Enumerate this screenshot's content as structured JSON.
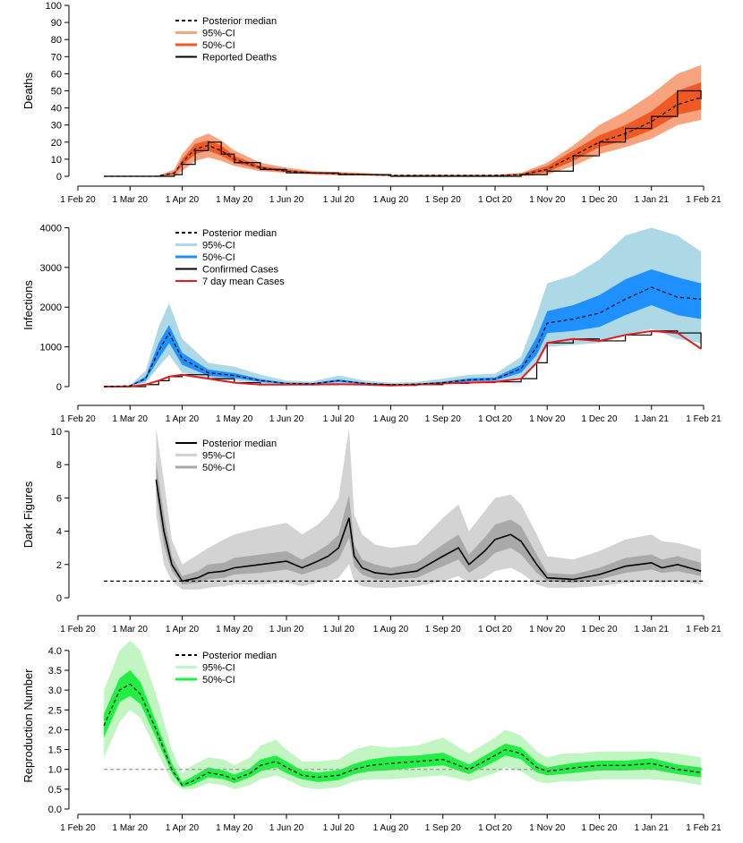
{
  "x_axis": {
    "tick_labels": [
      "1 Feb 20",
      "1 Mar 20",
      "1 Apr 20",
      "1 May 20",
      "1 Jun 20",
      "1 Jul 20",
      "1 Aug 20",
      "1 Sep 20",
      "1 Oct 20",
      "1 Nov 20",
      "1 Dec 20",
      "1 Jan 21",
      "1 Feb 21"
    ],
    "tick_months": [
      0,
      1,
      2,
      3,
      4,
      5,
      6,
      7,
      8,
      9,
      10,
      11,
      12
    ]
  },
  "chart_data": [
    {
      "type": "area",
      "ylabel": "Deaths",
      "ylim": [
        0,
        100
      ],
      "yticks": [
        0,
        10,
        20,
        30,
        40,
        50,
        60,
        70,
        80,
        90,
        100
      ],
      "legend_position": "top-left",
      "legend": [
        "Posterior median",
        "95%-CI",
        "50%-CI",
        "Reported Deaths"
      ],
      "colors": {
        "ci95": "#f7a47e",
        "ci50": "#ef5a24",
        "median": "#000000",
        "observed": "#000000"
      },
      "observed_style": "step",
      "series": {
        "x_month": [
          0.5,
          1.0,
          1.5,
          1.85,
          2.0,
          2.25,
          2.5,
          2.75,
          3.0,
          3.5,
          4.0,
          4.5,
          5.0,
          5.5,
          6.0,
          7.0,
          8.0,
          8.5,
          9.0,
          9.5,
          10.0,
          10.5,
          11.0,
          11.5,
          11.95
        ],
        "median": [
          0,
          0,
          0,
          2,
          8,
          16,
          18,
          15,
          10,
          5,
          3,
          2,
          1.5,
          1,
          0.5,
          0.5,
          0.5,
          1,
          4,
          12,
          20,
          25,
          32,
          42,
          46
        ],
        "ci95_low": [
          0,
          0,
          0,
          0,
          3,
          9,
          11,
          9,
          6,
          3,
          2,
          1,
          0.5,
          0.5,
          0,
          0,
          0,
          0,
          1,
          6,
          13,
          17,
          22,
          30,
          33
        ],
        "ci95_high": [
          0,
          0,
          0,
          4,
          13,
          22,
          25,
          21,
          15,
          8,
          5,
          3,
          2.5,
          2,
          1,
          1,
          1,
          2,
          8,
          18,
          30,
          38,
          48,
          60,
          65
        ],
        "ci50_low": [
          0,
          0,
          0,
          1,
          6,
          13,
          15,
          12,
          8,
          4,
          2.5,
          1.5,
          1,
          0.5,
          0.3,
          0.3,
          0.3,
          0.5,
          2.5,
          9,
          17,
          21,
          27,
          36,
          39
        ],
        "ci50_high": [
          0,
          0,
          0,
          2.5,
          10,
          19,
          21,
          18,
          12,
          6,
          4,
          2.5,
          2,
          1.5,
          0.7,
          0.7,
          0.7,
          1.5,
          6,
          15,
          24,
          30,
          38,
          50,
          55
        ],
        "observed": [
          0,
          0,
          0,
          1,
          7,
          15,
          20,
          13,
          8,
          4,
          2,
          2,
          1,
          1,
          0,
          0,
          0,
          1,
          3,
          12,
          20,
          28,
          35,
          50,
          45
        ]
      }
    },
    {
      "type": "area",
      "ylabel": "Infections",
      "ylim": [
        0,
        4100
      ],
      "yticks": [
        0,
        1000,
        2000,
        3000,
        4000
      ],
      "legend_position": "top-left",
      "legend": [
        "Posterior median",
        "95%-CI",
        "50%-CI",
        "Confirmed Cases",
        "7 day mean Cases"
      ],
      "colors": {
        "ci95": "#add8e6",
        "ci50": "#1e90ff",
        "median": "#000000",
        "observed": "#000000",
        "mean7": "#e41a1c"
      },
      "observed_style": "step",
      "series": {
        "x_month": [
          0.5,
          1.0,
          1.3,
          1.55,
          1.75,
          2.0,
          2.5,
          3.0,
          3.5,
          4.0,
          4.5,
          5.0,
          5.5,
          6.0,
          6.5,
          7.0,
          7.5,
          8.0,
          8.5,
          8.8,
          9.0,
          9.5,
          10.0,
          10.5,
          11.0,
          11.5,
          11.95
        ],
        "median": [
          0,
          20,
          200,
          900,
          1350,
          700,
          350,
          280,
          150,
          80,
          70,
          150,
          80,
          50,
          60,
          100,
          170,
          190,
          450,
          1000,
          1600,
          1700,
          1850,
          2200,
          2500,
          2250,
          2200
        ],
        "ci95_low": [
          0,
          10,
          100,
          500,
          800,
          350,
          180,
          150,
          80,
          40,
          35,
          80,
          40,
          25,
          30,
          50,
          90,
          100,
          250,
          600,
          1000,
          1050,
          1100,
          1300,
          1450,
          1200,
          1100
        ],
        "ci95_high": [
          0,
          40,
          400,
          1500,
          2100,
          1200,
          600,
          500,
          300,
          150,
          130,
          280,
          150,
          100,
          120,
          200,
          300,
          320,
          750,
          1800,
          2600,
          2800,
          3200,
          3800,
          4000,
          3800,
          3400
        ],
        "ci50_low": [
          0,
          15,
          150,
          700,
          1100,
          550,
          270,
          220,
          120,
          60,
          55,
          120,
          60,
          40,
          45,
          80,
          130,
          150,
          350,
          800,
          1350,
          1400,
          1500,
          1800,
          2050,
          1800,
          1700
        ],
        "ci50_high": [
          0,
          25,
          250,
          1100,
          1550,
          850,
          430,
          340,
          190,
          100,
          90,
          180,
          100,
          60,
          75,
          125,
          210,
          230,
          550,
          1250,
          1900,
          2050,
          2300,
          2700,
          2950,
          2750,
          2600
        ],
        "observed": [
          0,
          0,
          50,
          150,
          250,
          300,
          200,
          100,
          50,
          50,
          50,
          60,
          50,
          30,
          50,
          80,
          100,
          120,
          200,
          600,
          1100,
          1200,
          1150,
          1300,
          1400,
          1350,
          950
        ],
        "mean7": [
          0,
          0,
          50,
          150,
          250,
          300,
          200,
          100,
          50,
          50,
          50,
          60,
          50,
          30,
          50,
          80,
          100,
          120,
          200,
          600,
          1100,
          1200,
          1150,
          1300,
          1400,
          1350,
          950
        ]
      }
    },
    {
      "type": "area",
      "ylabel": "Dark Figures",
      "ylim": [
        0,
        10
      ],
      "yticks": [
        0,
        2,
        4,
        6,
        8,
        10
      ],
      "reference_line": 1,
      "legend_position": "top-left",
      "legend": [
        "Posterior median",
        "95%-CI",
        "50%-CI"
      ],
      "colors": {
        "ci95": "#d3d3d3",
        "ci50": "#a9a9a9",
        "median": "#000000"
      },
      "series": {
        "x_month": [
          1.5,
          1.65,
          1.8,
          2.0,
          2.3,
          2.5,
          2.8,
          3.0,
          3.5,
          4.0,
          4.3,
          4.6,
          4.8,
          5.0,
          5.2,
          5.3,
          5.45,
          5.7,
          6.0,
          6.5,
          7.0,
          7.3,
          7.5,
          7.8,
          8.0,
          8.3,
          8.5,
          8.8,
          9.0,
          9.5,
          10.0,
          10.5,
          11.0,
          11.2,
          11.5,
          11.95
        ],
        "median": [
          7.1,
          4.0,
          2.0,
          1.0,
          1.2,
          1.5,
          1.6,
          1.8,
          2.0,
          2.2,
          1.8,
          2.2,
          2.5,
          3.0,
          4.8,
          2.5,
          1.8,
          1.5,
          1.4,
          1.6,
          2.5,
          3.0,
          2.0,
          2.8,
          3.5,
          3.8,
          3.4,
          2.0,
          1.2,
          1.1,
          1.4,
          1.9,
          2.1,
          1.8,
          2.0,
          1.6
        ],
        "ci95_low": [
          5.0,
          2.0,
          1.0,
          0.5,
          0.5,
          0.6,
          0.7,
          0.8,
          0.8,
          0.9,
          0.7,
          0.9,
          1.0,
          1.2,
          2.0,
          1.0,
          0.7,
          0.6,
          0.6,
          0.7,
          1.0,
          1.3,
          0.9,
          1.2,
          1.6,
          1.8,
          1.5,
          0.8,
          0.6,
          0.6,
          0.7,
          0.9,
          1.0,
          0.9,
          1.0,
          0.8
        ],
        "ci95_high": [
          10.2,
          7.0,
          3.5,
          2.0,
          2.6,
          3.0,
          3.5,
          3.8,
          4.2,
          4.5,
          3.8,
          4.4,
          5.0,
          6.0,
          10.2,
          5.0,
          3.8,
          3.2,
          3.0,
          3.2,
          4.8,
          5.6,
          4.0,
          5.2,
          6.0,
          6.2,
          5.6,
          3.8,
          2.5,
          2.3,
          2.8,
          3.5,
          3.8,
          3.4,
          3.3,
          2.9
        ],
        "ci50_low": [
          6.2,
          3.1,
          1.6,
          0.8,
          0.9,
          1.1,
          1.2,
          1.4,
          1.5,
          1.7,
          1.4,
          1.7,
          1.9,
          2.3,
          3.6,
          1.9,
          1.4,
          1.1,
          1.1,
          1.2,
          1.9,
          2.3,
          1.5,
          2.1,
          2.7,
          3.0,
          2.6,
          1.5,
          1.0,
          0.9,
          1.1,
          1.5,
          1.7,
          1.5,
          1.6,
          1.3
        ],
        "ci50_high": [
          8.2,
          5.0,
          2.5,
          1.3,
          1.6,
          2.0,
          2.1,
          2.4,
          2.6,
          2.8,
          2.3,
          2.8,
          3.2,
          3.8,
          6.2,
          3.2,
          2.3,
          2.0,
          1.8,
          2.1,
          3.2,
          3.8,
          2.6,
          3.6,
          4.4,
          4.7,
          4.3,
          2.6,
          1.5,
          1.4,
          1.8,
          2.4,
          2.6,
          2.3,
          2.5,
          2.1
        ]
      }
    },
    {
      "type": "area",
      "ylabel": "Reproduction Number",
      "ylim": [
        0,
        4.2
      ],
      "yticks": [
        "0.0",
        "0.5",
        "1.0",
        "1.5",
        "2.0",
        "2.5",
        "3.0",
        "3.5",
        "4.0"
      ],
      "reference_line": 1,
      "legend_position": "top-left",
      "legend": [
        "Posterior median",
        "95%-CI",
        "50%-CI"
      ],
      "colors": {
        "ci95": "#c1f5c1",
        "ci50": "#22ee44",
        "median": "#000000"
      },
      "series": {
        "x_month": [
          0.5,
          0.8,
          1.0,
          1.2,
          1.5,
          1.8,
          2.0,
          2.2,
          2.5,
          2.8,
          3.0,
          3.3,
          3.5,
          3.8,
          4.0,
          4.3,
          4.6,
          5.0,
          5.3,
          5.6,
          6.0,
          6.5,
          7.0,
          7.5,
          8.0,
          8.2,
          8.5,
          8.8,
          9.0,
          9.3,
          9.6,
          10.0,
          10.5,
          11.0,
          11.5,
          11.95
        ],
        "median": [
          2.1,
          3.0,
          3.15,
          2.9,
          2.0,
          1.0,
          0.6,
          0.7,
          0.92,
          0.85,
          0.75,
          0.9,
          1.1,
          1.2,
          1.05,
          0.85,
          0.8,
          0.85,
          1.0,
          1.1,
          1.15,
          1.2,
          1.25,
          1.0,
          1.35,
          1.5,
          1.4,
          1.05,
          0.95,
          1.0,
          1.05,
          1.1,
          1.1,
          1.15,
          1.0,
          0.92
        ],
        "ci95_low": [
          1.3,
          2.2,
          2.5,
          2.3,
          1.5,
          0.7,
          0.5,
          0.5,
          0.65,
          0.6,
          0.5,
          0.6,
          0.75,
          0.85,
          0.75,
          0.55,
          0.5,
          0.55,
          0.7,
          0.75,
          0.75,
          0.8,
          0.85,
          0.7,
          0.9,
          1.05,
          0.95,
          0.7,
          0.65,
          0.7,
          0.7,
          0.75,
          0.75,
          0.75,
          0.7,
          0.6
        ],
        "ci95_high": [
          3.0,
          4.0,
          4.25,
          4.0,
          2.9,
          1.5,
          0.9,
          1.1,
          1.3,
          1.25,
          1.1,
          1.3,
          1.6,
          1.75,
          1.5,
          1.2,
          1.2,
          1.25,
          1.5,
          1.6,
          1.55,
          1.6,
          1.8,
          1.4,
          1.8,
          2.0,
          1.85,
          1.45,
          1.3,
          1.4,
          1.4,
          1.45,
          1.45,
          1.45,
          1.4,
          1.3
        ],
        "ci50_low": [
          1.8,
          2.7,
          2.85,
          2.65,
          1.8,
          0.9,
          0.55,
          0.6,
          0.8,
          0.75,
          0.65,
          0.8,
          0.95,
          1.05,
          0.9,
          0.75,
          0.68,
          0.73,
          0.88,
          0.95,
          0.98,
          1.05,
          1.1,
          0.88,
          1.2,
          1.35,
          1.25,
          0.92,
          0.85,
          0.88,
          0.92,
          0.97,
          0.97,
          1.0,
          0.88,
          0.8
        ],
        "ci50_high": [
          2.4,
          3.3,
          3.5,
          3.2,
          2.2,
          1.15,
          0.68,
          0.82,
          1.05,
          0.97,
          0.87,
          1.02,
          1.25,
          1.35,
          1.2,
          0.97,
          0.92,
          0.98,
          1.14,
          1.25,
          1.32,
          1.35,
          1.42,
          1.12,
          1.5,
          1.65,
          1.55,
          1.18,
          1.05,
          1.12,
          1.18,
          1.22,
          1.22,
          1.28,
          1.12,
          1.05
        ]
      }
    }
  ]
}
